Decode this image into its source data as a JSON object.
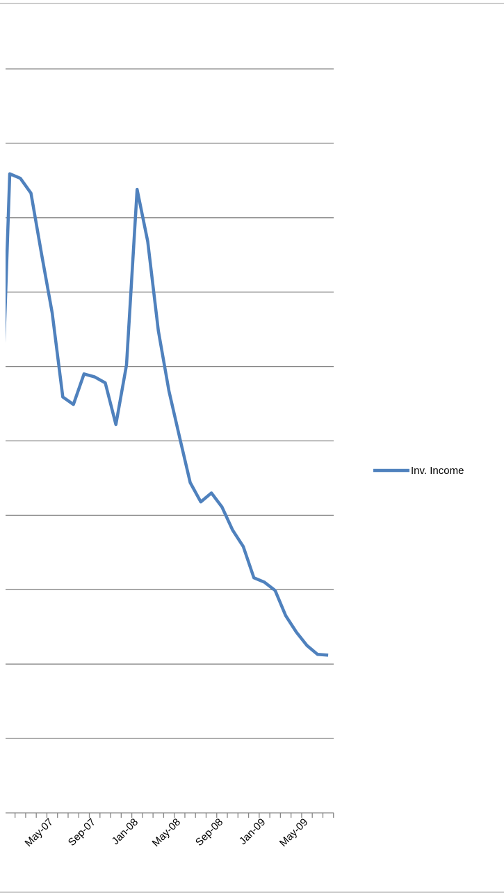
{
  "chart_data": {
    "type": "line",
    "categories": [
      null,
      null,
      null,
      null,
      null,
      "May-07",
      null,
      null,
      null,
      "Sep-07",
      null,
      null,
      null,
      "Jan-08",
      null,
      null,
      null,
      "May-08",
      null,
      null,
      null,
      "Sep-08",
      null,
      null,
      null,
      "Jan-09",
      null,
      null,
      null,
      "May-09",
      null,
      null
    ],
    "series": [
      {
        "name": "Inv. Income",
        "color": "#4f81bd",
        "values": [
          4.38,
          8.59,
          8.53,
          8.33,
          7.51,
          6.72,
          5.59,
          5.49,
          5.9,
          5.86,
          5.78,
          5.22,
          6.02,
          8.38,
          7.68,
          6.48,
          5.67,
          5.05,
          4.44,
          4.18,
          4.3,
          4.11,
          3.8,
          3.58,
          3.16,
          3.1,
          2.99,
          2.65,
          2.43,
          2.25,
          2.13,
          2.12
        ]
      }
    ],
    "ylim": [
      0,
      10
    ],
    "yticks": [
      0,
      1,
      2,
      3,
      4,
      5,
      6,
      7,
      8,
      9,
      10
    ],
    "grid": true,
    "legend": "right"
  }
}
